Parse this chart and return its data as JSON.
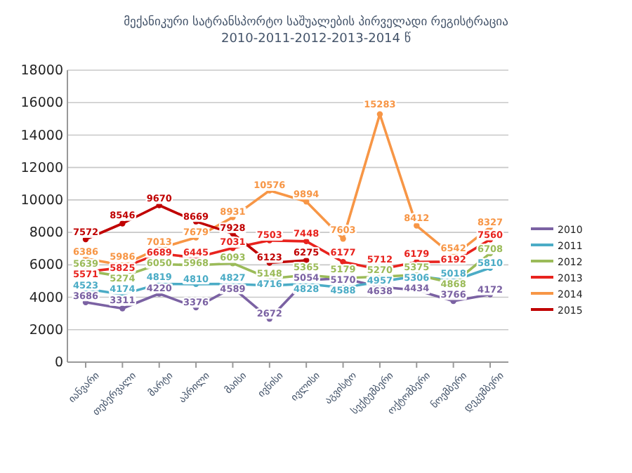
{
  "chart_data": {
    "type": "line",
    "title": "მექანიკური სატრანსპორტო საშუალების პირველადი რეგისტრაცია",
    "subtitle": "2010-2011-2012-2013-2014 წ",
    "categories": [
      "იანვარი",
      "თებერვალი",
      "მარტი",
      "აპრილი",
      "მაისი",
      "ივნისი",
      "ივლისი",
      "აგვისტო",
      "სექტემბერი",
      "ოქტომბერი",
      "ნოემბერი",
      "დეკემბერი"
    ],
    "series": [
      {
        "name": "2010",
        "color": "#7b62a3",
        "values": [
          3686,
          3311,
          4220,
          3376,
          4589,
          2672,
          5054,
          5170,
          4638,
          4434,
          3766,
          4172
        ]
      },
      {
        "name": "2011",
        "color": "#4bacc6",
        "values": [
          4523,
          4174,
          4819,
          4810,
          4827,
          4716,
          4828,
          4588,
          4957,
          5306,
          5018,
          5810
        ]
      },
      {
        "name": "2012",
        "color": "#9bbb59",
        "values": [
          5639,
          5274,
          6050,
          5968,
          6093,
          5148,
          5365,
          5179,
          5270,
          5375,
          4868,
          6708
        ]
      },
      {
        "name": "2013",
        "color": "#e8231e",
        "values": [
          5571,
          5825,
          6689,
          6445,
          7031,
          7503,
          7448,
          6177,
          5712,
          6179,
          6192,
          7560
        ]
      },
      {
        "name": "2014",
        "color": "#f79646",
        "values": [
          6386,
          5986,
          7013,
          7679,
          8931,
          10576,
          9894,
          7603,
          15283,
          8412,
          6542,
          8327
        ]
      },
      {
        "name": "2015",
        "color": "#c00000",
        "values": [
          7572,
          8546,
          9670,
          8669,
          7928,
          6123,
          6275,
          null,
          null,
          null,
          null,
          null
        ]
      }
    ],
    "ylim": [
      0,
      18000
    ],
    "yticks": [
      0,
      2000,
      4000,
      6000,
      8000,
      10000,
      12000,
      14000,
      16000,
      18000
    ],
    "grid": "y",
    "legend": "right",
    "marker": "circle",
    "line_style": "solid",
    "data_labels": true
  }
}
